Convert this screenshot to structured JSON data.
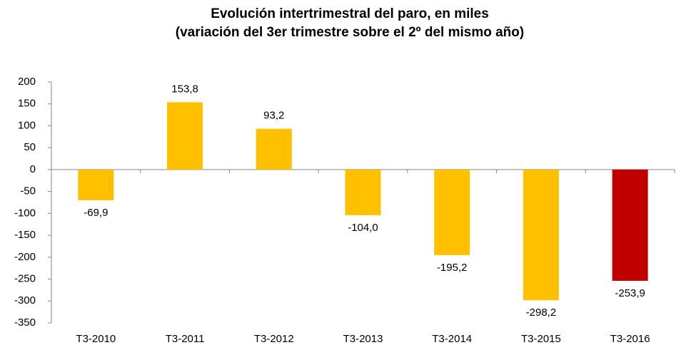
{
  "chart_data": {
    "type": "bar",
    "title": [
      "Evolución intertrimestral del paro, en miles",
      "(variación del 3er trimestre  sobre el 2º del mismo año)"
    ],
    "categories": [
      "T3-2010",
      "T3-2011",
      "T3-2012",
      "T3-2013",
      "T3-2014",
      "T3-2015",
      "T3-2016"
    ],
    "values": [
      -69.9,
      153.8,
      93.2,
      -104.0,
      -195.2,
      -298.2,
      -253.9
    ],
    "value_labels": [
      "-69,9",
      "153,8",
      "93,2",
      "-104,0",
      "-195,2",
      "-298,2",
      "-253,9"
    ],
    "colors": [
      "#ffc000",
      "#ffc000",
      "#ffc000",
      "#ffc000",
      "#ffc000",
      "#ffc000",
      "#c00000"
    ],
    "ylim": [
      -350,
      200
    ],
    "yticks": [
      -350,
      -300,
      -250,
      -200,
      -150,
      -100,
      -50,
      0,
      50,
      100,
      150,
      200
    ],
    "grid": false
  }
}
